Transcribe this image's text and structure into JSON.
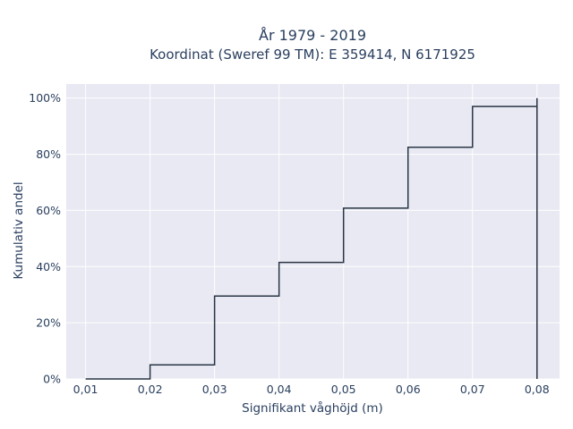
{
  "chart_data": {
    "type": "line",
    "line_shape": "step",
    "title_lines": [
      "År 1979 - 2019",
      "Koordinat (Sweref 99 TM): E 359414, N 6171925"
    ],
    "xlabel": "Signifikant våghöjd (m)",
    "ylabel": "Kumulativ andel",
    "xlim": [
      0.007,
      0.0835
    ],
    "ylim": [
      0,
      1.05
    ],
    "x_ticks": [
      0.01,
      0.02,
      0.03,
      0.04,
      0.05,
      0.06,
      0.07,
      0.08
    ],
    "x_tick_labels": [
      "0,01",
      "0,02",
      "0,03",
      "0,04",
      "0,05",
      "0,06",
      "0,07",
      "0,08"
    ],
    "y_ticks": [
      0,
      0.2,
      0.4,
      0.6,
      0.8,
      1.0
    ],
    "y_tick_labels": [
      "0%",
      "20%",
      "40%",
      "60%",
      "80%",
      "100%"
    ],
    "grid": true,
    "legend": false,
    "series": [
      {
        "x": [
          0.01,
          0.02,
          0.02,
          0.03,
          0.03,
          0.04,
          0.04,
          0.05,
          0.05,
          0.06,
          0.06,
          0.07,
          0.07,
          0.08,
          0.08,
          0.08
        ],
        "y": [
          0.0,
          0.0,
          0.05,
          0.05,
          0.295,
          0.295,
          0.415,
          0.415,
          0.608,
          0.608,
          0.825,
          0.825,
          0.97,
          0.97,
          1.0,
          0.0
        ]
      }
    ],
    "colors": {
      "plot_background": "#e8e9f2",
      "grid": "#ffffff",
      "line": "#2a3646",
      "text": "#2a3f5f"
    }
  }
}
